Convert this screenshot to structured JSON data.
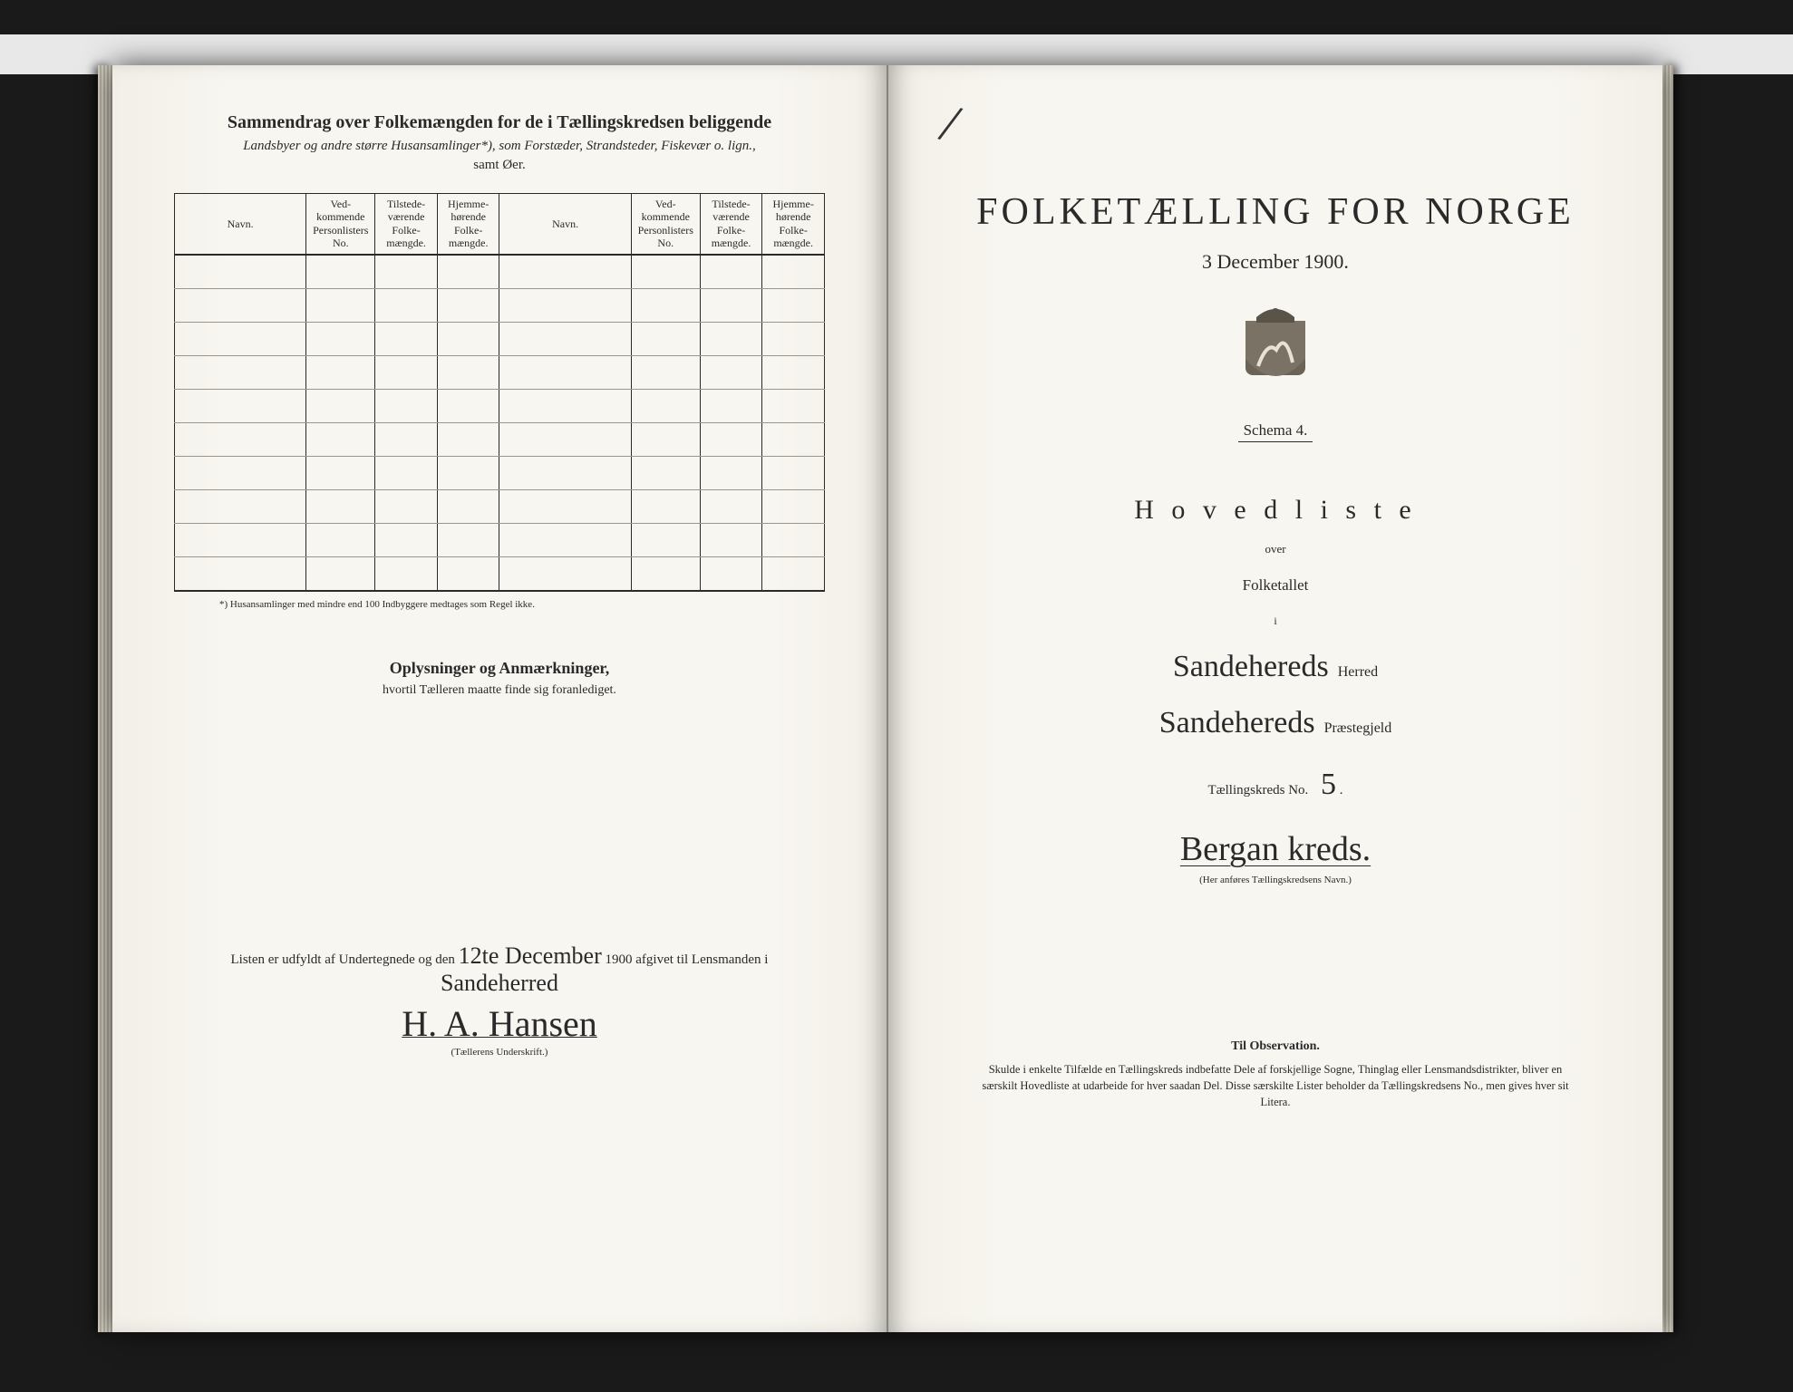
{
  "background": {
    "scanner_strip": "#e8e8e8",
    "dark": "#1a1a1a",
    "paper": "#f8f6f0"
  },
  "left_page": {
    "heading_line1": "Sammendrag over Folkemængden for de i Tællingskredsen beliggende",
    "heading_line2_italic": "Landsbyer og andre større Husansamlinger*), som Forstæder, Strandsteder, Fiskevær o. lign.,",
    "heading_line3": "samt Øer.",
    "table": {
      "columns": [
        "Navn.",
        "Ved-\nkommende\nPersonlisters\nNo.",
        "Tilstede-\nværende\nFolke-\nmængde.",
        "Hjemme-\nhørende\nFolke-\nmængde.",
        "Navn.",
        "Ved-\nkommende\nPersonlisters\nNo.",
        "Tilstede-\nværende\nFolke-\nmængde.",
        "Hjemme-\nhørende\nFolke-\nmængde."
      ],
      "blank_rows": 10
    },
    "footnote": "*) Husansamlinger med mindre end 100 Indbyggere medtages som Regel ikke.",
    "sub_heading": "Oplysninger og Anmærkninger,",
    "sub_text": "hvortil Tælleren maatte finde sig foranlediget.",
    "signature": {
      "prefix": "Listen er udfyldt af Undertegnede og den",
      "date_hand": "12te December",
      "year": "1900",
      "mid": "afgivet til Lensmanden i",
      "place_hand": "Sandeherred",
      "name_hand": "H. A. Hansen",
      "caption": "(Tællerens Underskrift.)"
    }
  },
  "right_page": {
    "slash_mark": "/",
    "title": "FOLKETÆLLING FOR NORGE",
    "date": "3 December 1900.",
    "schema": "Schema 4.",
    "hovedliste": "H o v e d l i s t e",
    "over": "over",
    "folketallet": "Folketallet",
    "i": "i",
    "herred_hand": "Sandehereds",
    "herred_label": "Herred",
    "praeste_hand": "Sandehereds",
    "praeste_label": "Præstegjeld",
    "tkreds_label": "Tællingskreds No.",
    "tkreds_no_hand": "5",
    "tkreds_dot": ".",
    "kreds_name_hand": "Bergan kreds.",
    "kreds_caption": "(Her anføres Tællingskredsens Navn.)",
    "obs_heading": "Til Observation.",
    "obs_text": "Skulde i enkelte Tilfælde en Tællingskreds indbefatte Dele af forskjellige Sogne, Thinglag eller Lensmandsdistrikter, bliver en særskilt Hovedliste at udarbeide for hver saadan Del. Disse særskilte Lister beholder da Tællingskredsens No., men gives hver sit Litera."
  }
}
